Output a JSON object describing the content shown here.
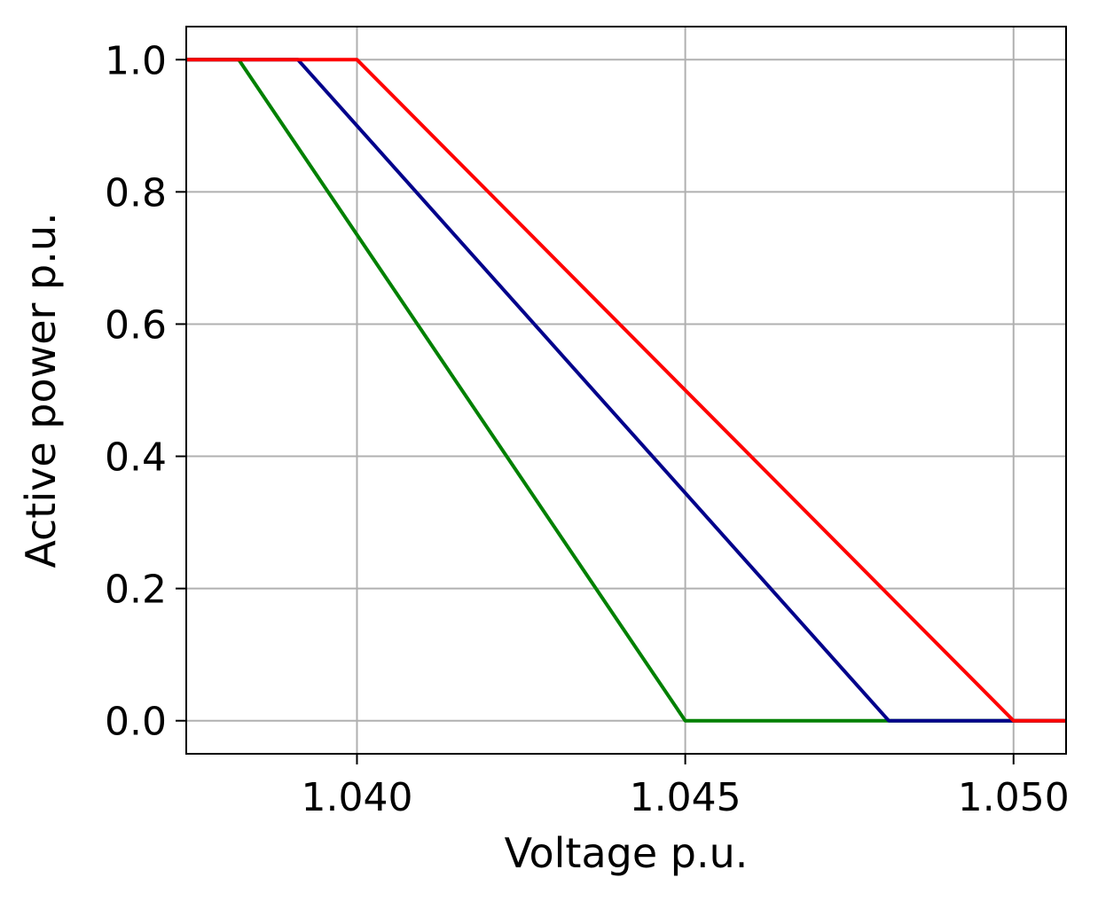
{
  "chart_data": {
    "type": "line",
    "title": "",
    "xlabel": "Voltage p.u.",
    "ylabel": "Active power p.u.",
    "xlim": [
      1.0374,
      1.0508
    ],
    "ylim": [
      -0.05,
      1.05
    ],
    "x_ticks": [
      1.04,
      1.045,
      1.05
    ],
    "x_tick_labels": [
      "1.040",
      "1.045",
      "1.050"
    ],
    "y_ticks": [
      0.0,
      0.2,
      0.4,
      0.6,
      0.8,
      1.0
    ],
    "y_tick_labels": [
      "0.0",
      "0.2",
      "0.4",
      "0.6",
      "0.8",
      "1.0"
    ],
    "grid": true,
    "legend": "none",
    "series": [
      {
        "color": "#008000",
        "x": [
          1.0374,
          1.0382,
          1.045,
          1.0508
        ],
        "y": [
          1.0,
          1.0,
          0.0,
          0.0
        ]
      },
      {
        "color": "#00008b",
        "x": [
          1.0374,
          1.0391,
          1.0481,
          1.0508
        ],
        "y": [
          1.0,
          1.0,
          0.0,
          0.0
        ]
      },
      {
        "color": "#ff0000",
        "x": [
          1.0374,
          1.04,
          1.05,
          1.0508
        ],
        "y": [
          1.0,
          1.0,
          0.0,
          0.0
        ]
      }
    ]
  }
}
